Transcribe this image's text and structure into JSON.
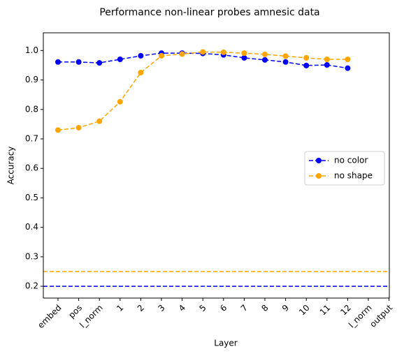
{
  "chart_data": {
    "type": "line",
    "title": "Performance non-linear probes amnesic data",
    "xlabel": "Layer",
    "ylabel": "Accuracy",
    "categories": [
      "embed",
      "pos",
      "l_norm",
      "1",
      "2",
      "3",
      "4",
      "5",
      "6",
      "7",
      "8",
      "9",
      "10",
      "11",
      "12",
      "l_norm",
      "output"
    ],
    "series": [
      {
        "name": "no color",
        "color": "blue",
        "values": [
          0.961,
          0.961,
          0.958,
          0.97,
          0.982,
          0.991,
          0.991,
          0.99,
          0.985,
          0.975,
          0.968,
          0.961,
          0.949,
          0.951,
          0.94,
          null,
          null
        ]
      },
      {
        "name": "no shape",
        "color": "orange",
        "values": [
          0.73,
          0.738,
          0.76,
          0.826,
          0.925,
          0.982,
          0.988,
          0.995,
          0.994,
          0.991,
          0.987,
          0.981,
          0.975,
          0.97,
          0.97,
          null,
          null
        ]
      }
    ],
    "hlines": [
      {
        "value": 0.2,
        "color": "blue"
      },
      {
        "value": 0.25,
        "color": "orange"
      }
    ],
    "ylim": [
      0.16,
      1.06
    ],
    "yticks": [
      0.2,
      0.3,
      0.4,
      0.5,
      0.6,
      0.7,
      0.8,
      0.9,
      {
        "value": 1,
        "label": "1.0"
      }
    ],
    "legend": "right"
  }
}
